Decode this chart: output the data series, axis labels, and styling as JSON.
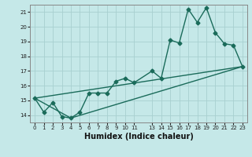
{
  "xlabel": "Humidex (Indice chaleur)",
  "background_color": "#c5e8e8",
  "grid_color": "#a8d0d0",
  "line_color": "#1a6b5a",
  "xlim": [
    -0.5,
    23.5
  ],
  "ylim": [
    13.5,
    21.5
  ],
  "xtick_labels": [
    "0",
    "1",
    "2",
    "3",
    "4",
    "5",
    "6",
    "7",
    "8",
    "9",
    "1011",
    "",
    "1314",
    "",
    "1516",
    "",
    "1718",
    "",
    "1920",
    "",
    "2122",
    "",
    "23"
  ],
  "yticks": [
    14,
    15,
    16,
    17,
    18,
    19,
    20,
    21
  ],
  "line1_x": [
    0,
    1,
    2,
    3,
    4,
    5,
    6,
    7,
    8,
    9,
    10,
    11,
    13,
    14,
    15,
    16,
    17,
    18,
    19,
    20,
    21,
    22,
    23
  ],
  "line1_y": [
    15.15,
    14.2,
    14.85,
    13.9,
    13.8,
    14.2,
    15.5,
    15.5,
    15.5,
    16.3,
    16.5,
    16.2,
    17.0,
    16.5,
    19.1,
    18.9,
    21.2,
    20.3,
    21.3,
    19.6,
    18.85,
    18.75,
    17.3
  ],
  "line2_x": [
    0,
    4,
    23
  ],
  "line2_y": [
    15.15,
    13.8,
    17.3
  ],
  "line3_x": [
    0,
    23
  ],
  "line3_y": [
    15.15,
    17.3
  ],
  "xlabel_fontsize": 7,
  "tick_fontsize": 5,
  "line_width": 1.0,
  "marker_size": 2.5
}
